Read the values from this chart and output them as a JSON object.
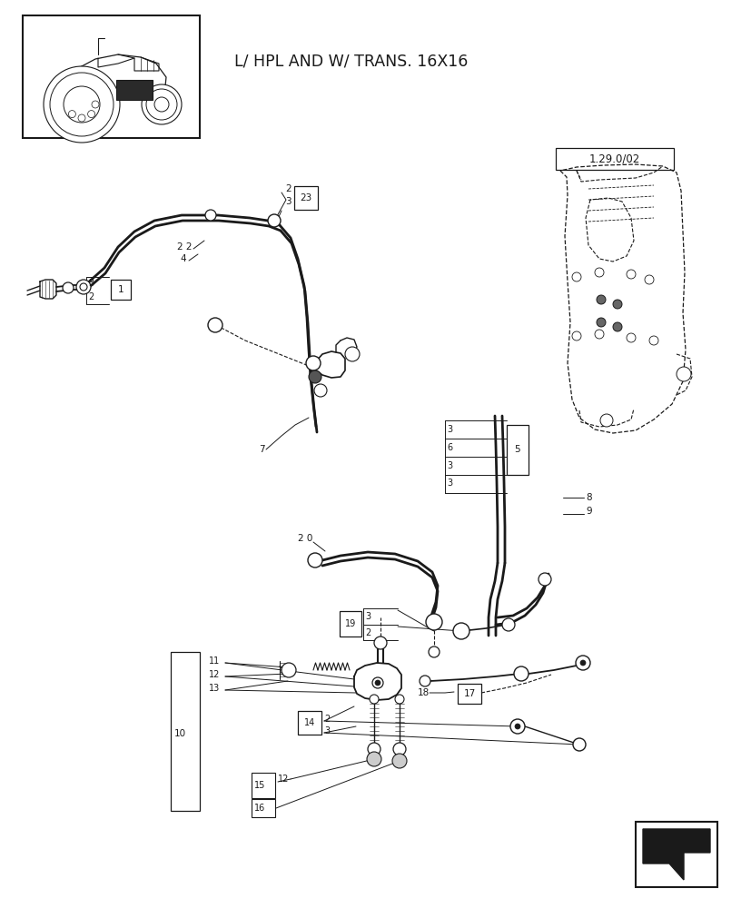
{
  "bg_color": "#ffffff",
  "line_color": "#1a1a1a",
  "title_text": "L/ HPL AND W/ TRANS. 16X16",
  "ref_label": "1.29.0/02",
  "title_fontsize": 12.5
}
